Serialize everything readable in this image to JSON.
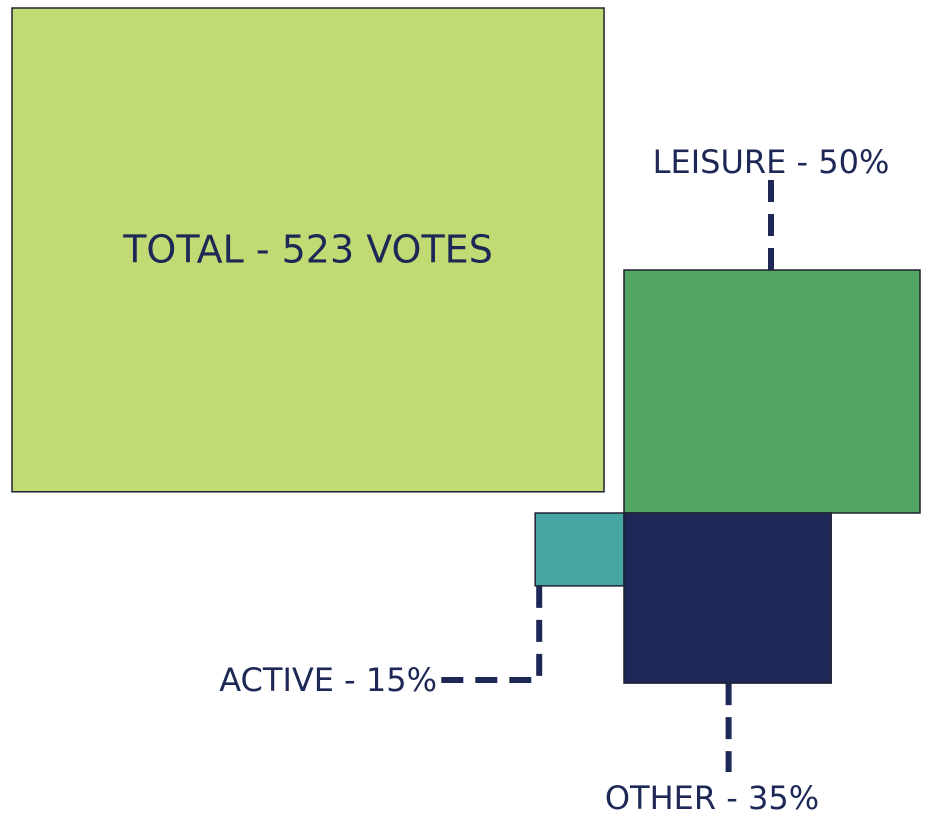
{
  "chart_data": {
    "type": "rect-breakdown",
    "total": 523,
    "total_label": "TOTAL - 523 VOTES",
    "total_color": "#c2da74",
    "values": [
      50,
      15,
      35
    ],
    "value_labels": [
      "LEISURE - 50%",
      "ACTIVE - 15%",
      "OTHER - 35%"
    ],
    "colors": [
      "#55a562",
      "#45a5a2",
      "#1e2856"
    ]
  }
}
